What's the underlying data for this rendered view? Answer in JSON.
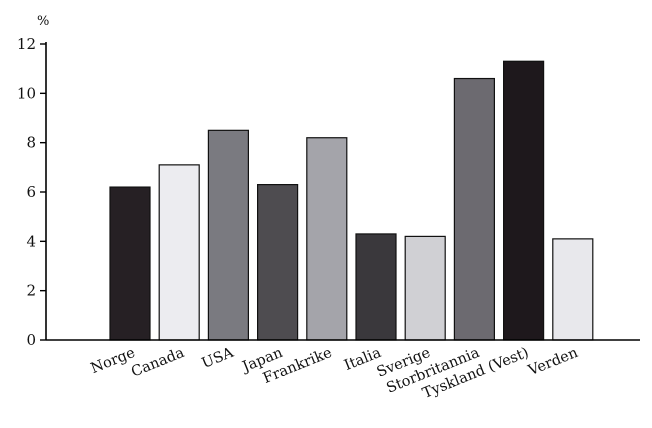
{
  "chart_data": {
    "type": "bar",
    "unit": "%",
    "categories": [
      "Norge",
      "Canada",
      "USA",
      "Japan",
      "Frankrike",
      "Italia",
      "Sverige",
      "Storbritannia",
      "Tyskland (Vest)",
      "Verden"
    ],
    "values": [
      6.2,
      7.1,
      8.5,
      6.3,
      8.2,
      4.3,
      4.2,
      10.6,
      11.3,
      4.1
    ],
    "colors": [
      "#262024",
      "#ececf0",
      "#7a7a80",
      "#4e4c50",
      "#a4a4aa",
      "#3a383c",
      "#d0d0d4",
      "#6c6a70",
      "#1e181c",
      "#e8e8ec"
    ],
    "ylim": [
      0,
      12
    ],
    "yticks": [
      "0",
      "2",
      "4",
      "6",
      "8",
      "10",
      "12"
    ],
    "grid": false,
    "legend": "none"
  }
}
